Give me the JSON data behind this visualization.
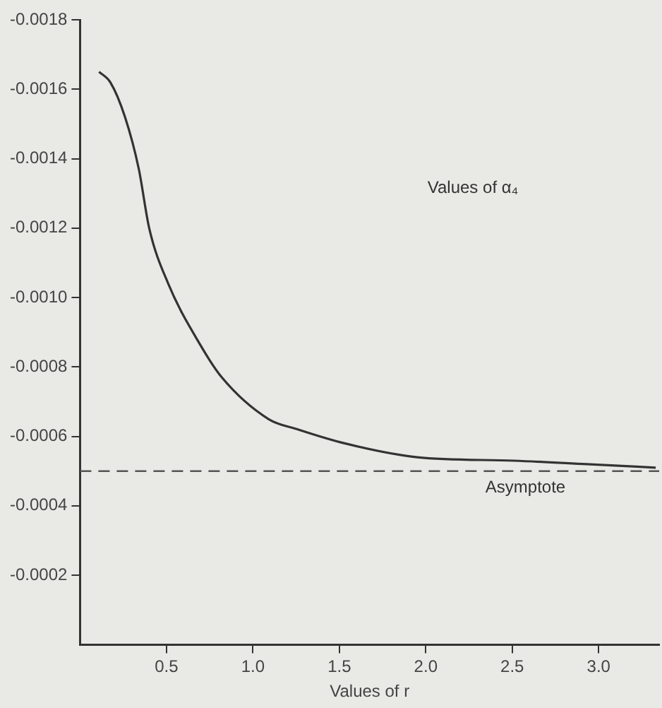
{
  "chart_data": {
    "type": "line",
    "xlabel": "Values of r",
    "annotations": [
      "Values of α₄"
    ],
    "x": [
      0.11,
      0.175,
      0.26,
      0.34,
      0.4,
      0.51,
      0.7,
      0.82,
      1.09,
      1.26,
      1.53,
      1.95,
      2.51,
      2.93,
      3.33
    ],
    "series": [
      {
        "color": "#333333",
        "values": [
          -0.00165,
          -0.00162,
          -0.00152,
          -0.00137,
          -0.0012,
          -0.00104,
          -0.00086,
          -0.00077,
          -0.00065,
          -0.00062,
          -0.00058,
          -0.00054,
          -0.00053,
          -0.00052,
          -0.00051
        ]
      }
    ],
    "ref_lines": [
      {
        "axis": "y",
        "value": -0.0005,
        "label": "Asymptote",
        "line_style": "dashed",
        "color": "#555555"
      }
    ],
    "xlim": [
      0,
      3.35
    ],
    "xticks": [
      0.5,
      {
        "value": 1,
        "label": "1.0"
      },
      1.5,
      {
        "value": 2,
        "label": "2.0"
      },
      2.5,
      {
        "value": 3,
        "label": "3.0"
      }
    ],
    "ylim": [
      0,
      -0.0018
    ],
    "yticks": [
      -0.0002,
      -0.0004,
      -0.0006,
      -0.0008,
      {
        "value": -0.001,
        "label": "-0.0010"
      },
      -0.0012,
      -0.0014,
      -0.0016,
      -0.0018
    ],
    "grid": false,
    "legend": false,
    "marker": "none",
    "line_style": "solid"
  }
}
